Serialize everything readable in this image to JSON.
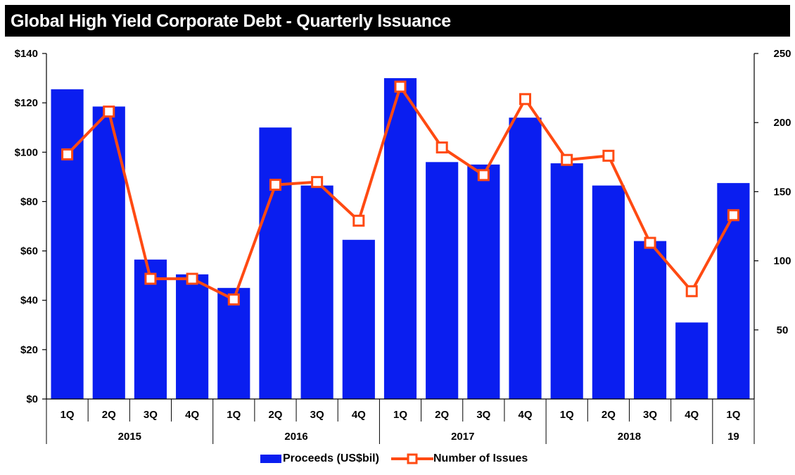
{
  "colors": {
    "title_bg": "#000000",
    "bar": "#0a1ef0",
    "line": "#ff4a12",
    "marker_fill": "#ffffff"
  },
  "chart_data": {
    "type": "bar+line",
    "title": "Global High Yield Corporate Debt - Quarterly Issuance",
    "categories": [
      "1Q",
      "2Q",
      "3Q",
      "4Q",
      "1Q",
      "2Q",
      "3Q",
      "4Q",
      "1Q",
      "2Q",
      "3Q",
      "4Q",
      "1Q",
      "2Q",
      "3Q",
      "4Q",
      "1Q"
    ],
    "groups": [
      {
        "label": "2015",
        "count": 4
      },
      {
        "label": "2016",
        "count": 4
      },
      {
        "label": "2017",
        "count": 4
      },
      {
        "label": "2018",
        "count": 4
      },
      {
        "label": "19",
        "count": 1
      }
    ],
    "series": [
      {
        "name": "Proceeds (US$bil)",
        "type": "bar",
        "axis": "left",
        "values": [
          125.5,
          118.5,
          56.5,
          50.5,
          45,
          110,
          86.5,
          64.5,
          130,
          96,
          95,
          114,
          95.5,
          86.5,
          64,
          31,
          87.5
        ]
      },
      {
        "name": "Number of Issues",
        "type": "line",
        "axis": "right",
        "values": [
          177,
          208,
          87,
          87,
          72,
          155,
          157,
          129,
          226,
          182,
          162,
          217,
          173,
          176,
          113,
          78,
          133
        ]
      }
    ],
    "y_left": {
      "min": 0,
      "max": 140,
      "ticks": [
        0,
        20,
        40,
        60,
        80,
        100,
        120,
        140
      ],
      "tick_labels": [
        "$0",
        "$20",
        "$40",
        "$60",
        "$80",
        "$100",
        "$120",
        "$140"
      ]
    },
    "y_right": {
      "min": 0,
      "max": 250,
      "ticks": [
        50,
        100,
        150,
        200,
        250
      ],
      "tick_labels": [
        "50",
        "100",
        "150",
        "200",
        "250"
      ]
    },
    "grid": false,
    "legend_position": "bottom"
  }
}
